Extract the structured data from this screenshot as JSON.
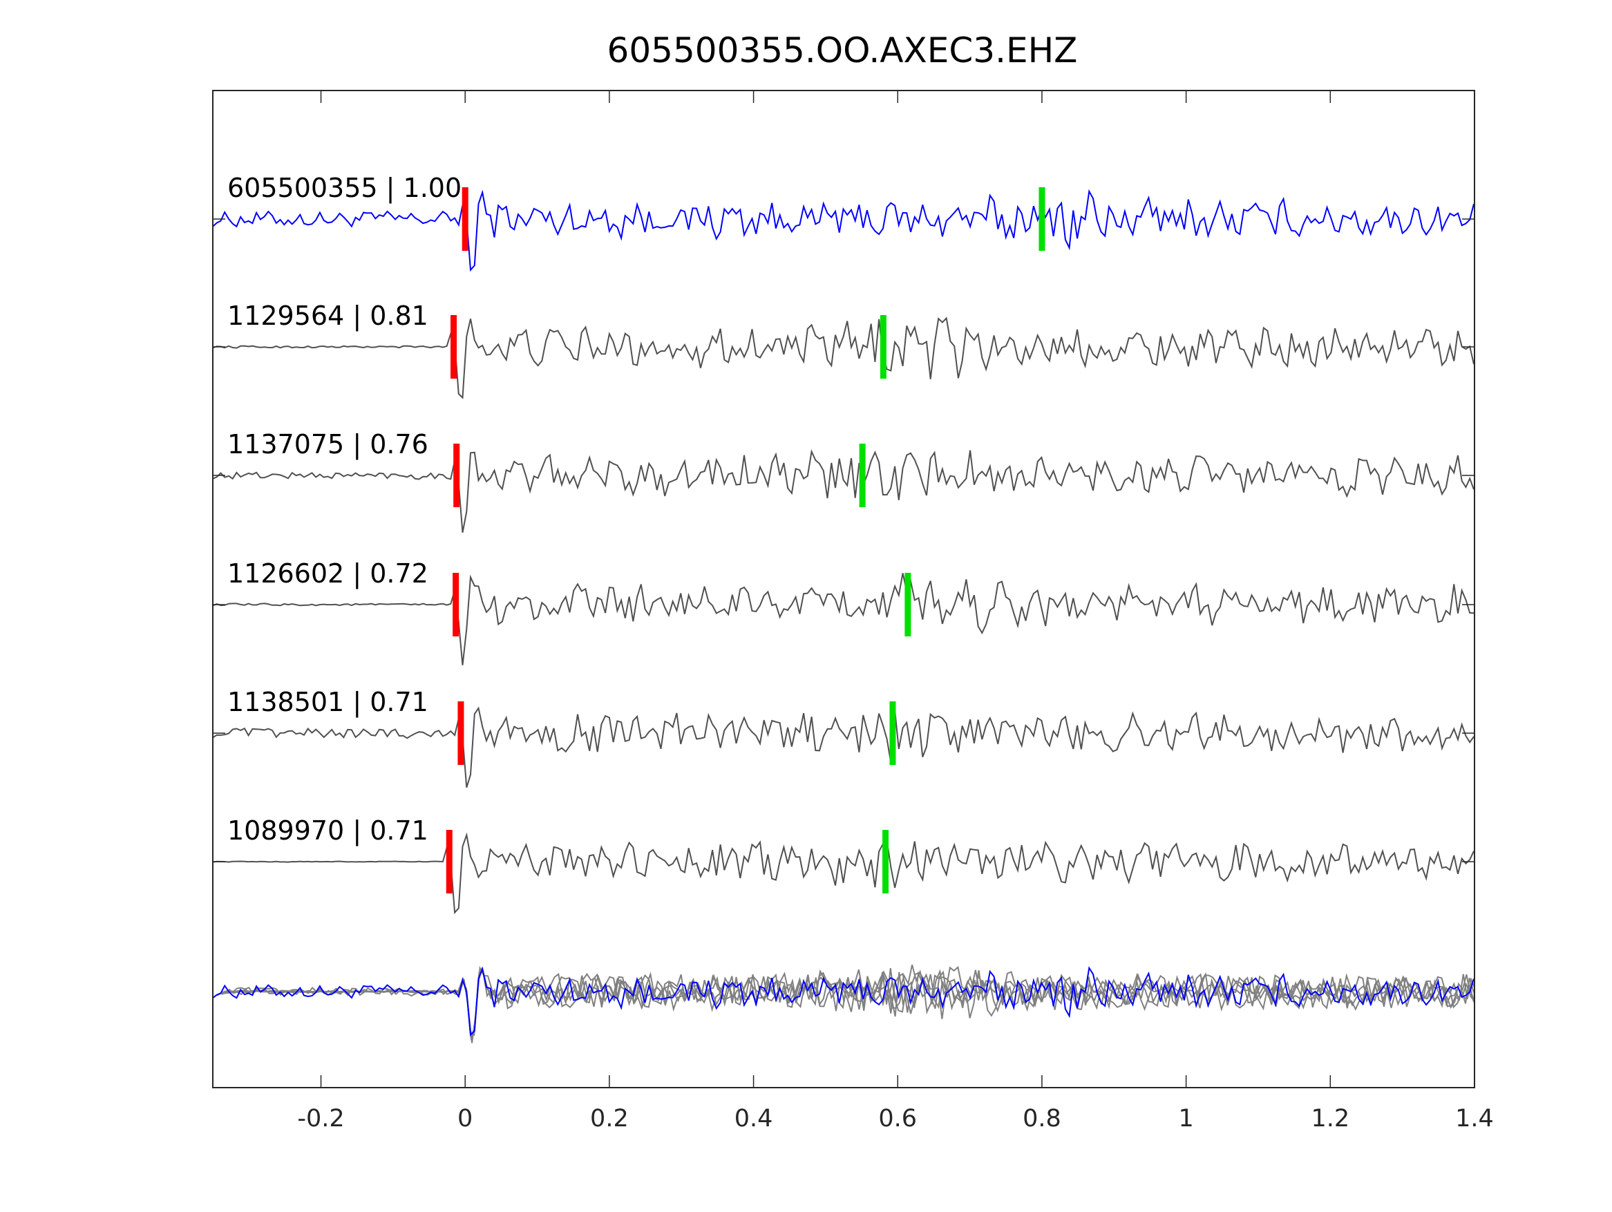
{
  "chart_data": {
    "type": "line",
    "title": "605500355.OO.AXEC3.EHZ",
    "xlabel": "",
    "ylabel": "",
    "xlim": [
      -0.35,
      1.4
    ],
    "xticks": [
      -0.2,
      0,
      0.2,
      0.4,
      0.6,
      0.8,
      1,
      1.2,
      1.4
    ],
    "xtick_labels": [
      "-0.2",
      "0",
      "0.2",
      "0.4",
      "0.6",
      "0.8",
      "1",
      "1.2",
      "1.4"
    ],
    "grid": false,
    "colors": {
      "reference": "#0000ff",
      "neighbor": "#505050",
      "stack_neighbor": "#808080",
      "p_pick": "#ff0000",
      "s_pick": "#00e000",
      "axis": "#262626"
    },
    "traces": [
      {
        "id": "605500355",
        "cc": "1.00",
        "label": "605500355 | 1.00",
        "p_pick": 0.0,
        "s_pick": 0.8,
        "reference": true
      },
      {
        "id": "1129564",
        "cc": "0.81",
        "label": "1129564 | 0.81",
        "p_pick": -0.016,
        "s_pick": 0.58,
        "reference": false
      },
      {
        "id": "1137075",
        "cc": "0.76",
        "label": "1137075 | 0.76",
        "p_pick": -0.012,
        "s_pick": 0.551,
        "reference": false
      },
      {
        "id": "1126602",
        "cc": "0.72",
        "label": "1126602 | 0.72",
        "p_pick": -0.013,
        "s_pick": 0.614,
        "reference": false
      },
      {
        "id": "1138501",
        "cc": "0.71",
        "label": "1138501 | 0.71",
        "p_pick": -0.006,
        "s_pick": 0.593,
        "reference": false
      },
      {
        "id": "1089970",
        "cc": "0.71",
        "label": "1089970 | 0.71",
        "p_pick": -0.022,
        "s_pick": 0.583,
        "reference": false
      }
    ]
  }
}
